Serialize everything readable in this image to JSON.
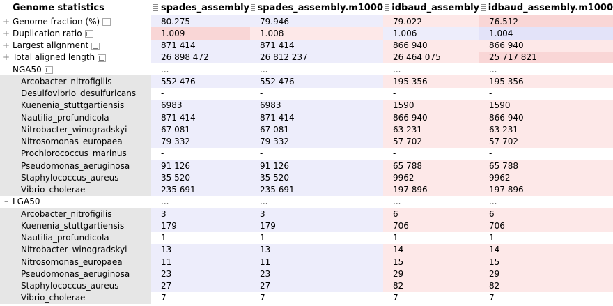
{
  "header": {
    "title": "Genome statistics",
    "columns": [
      "spades_assembly",
      "spades_assembly.m1000",
      "idbaud_assembly",
      "idbaud_assembly.m1000"
    ]
  },
  "metrics": [
    {
      "label": "Genome fraction (%)",
      "values": [
        "80.275",
        "79.946",
        "79.022",
        "76.512"
      ]
    },
    {
      "label": "Duplication ratio",
      "values": [
        "1.009",
        "1.008",
        "1.006",
        "1.004"
      ]
    },
    {
      "label": "Largest alignment",
      "values": [
        "871 414",
        "871 414",
        "866 940",
        "866 940"
      ]
    },
    {
      "label": "Total aligned length",
      "values": [
        "26 898 472",
        "26 812 237",
        "26 464 075",
        "25 717 821"
      ]
    }
  ],
  "nga50": {
    "label": "NGA50",
    "summary": [
      "...",
      "...",
      "...",
      "..."
    ],
    "rows": [
      {
        "label": "Arcobacter_nitrofigilis",
        "values": [
          "552 476",
          "552 476",
          "195 356",
          "195 356"
        ]
      },
      {
        "label": "Desulfovibrio_desulfuricans",
        "values": [
          "-",
          "-",
          "-",
          "-"
        ]
      },
      {
        "label": "Kuenenia_stuttgartiensis",
        "values": [
          "6983",
          "6983",
          "1590",
          "1590"
        ]
      },
      {
        "label": "Nautilia_profundicola",
        "values": [
          "871 414",
          "871 414",
          "866 940",
          "866 940"
        ]
      },
      {
        "label": "Nitrobacter_winogradskyi",
        "values": [
          "67 081",
          "67 081",
          "63 231",
          "63 231"
        ]
      },
      {
        "label": "Nitrosomonas_europaea",
        "values": [
          "79 332",
          "79 332",
          "57 702",
          "57 702"
        ]
      },
      {
        "label": "Prochlorococcus_marinus",
        "values": [
          "-",
          "-",
          "-",
          "-"
        ]
      },
      {
        "label": "Pseudomonas_aeruginosa",
        "values": [
          "91 126",
          "91 126",
          "65 788",
          "65 788"
        ]
      },
      {
        "label": "Staphylococcus_aureus",
        "values": [
          "35 520",
          "35 520",
          "9962",
          "9962"
        ]
      },
      {
        "label": "Vibrio_cholerae",
        "values": [
          "235 691",
          "235 691",
          "197 896",
          "197 896"
        ]
      }
    ]
  },
  "lga50": {
    "label": "LGA50",
    "summary": [
      "...",
      "...",
      "...",
      "..."
    ],
    "rows": [
      {
        "label": "Arcobacter_nitrofigilis",
        "values": [
          "3",
          "3",
          "6",
          "6"
        ]
      },
      {
        "label": "Kuenenia_stuttgartiensis",
        "values": [
          "179",
          "179",
          "706",
          "706"
        ]
      },
      {
        "label": "Nautilia_profundicola",
        "values": [
          "1",
          "1",
          "1",
          "1"
        ]
      },
      {
        "label": "Nitrobacter_winogradskyi",
        "values": [
          "13",
          "13",
          "14",
          "14"
        ]
      },
      {
        "label": "Nitrosomonas_europaea",
        "values": [
          "11",
          "11",
          "15",
          "15"
        ]
      },
      {
        "label": "Pseudomonas_aeruginosa",
        "values": [
          "23",
          "23",
          "29",
          "29"
        ]
      },
      {
        "label": "Staphylococcus_aureus",
        "values": [
          "27",
          "27",
          "82",
          "82"
        ]
      },
      {
        "label": "Vibrio_cholerae",
        "values": [
          "7",
          "7",
          "7",
          "7"
        ]
      }
    ]
  },
  "icons": {
    "expand": "plus-icon",
    "collapse": "minus-icon",
    "plot": "plot-icon",
    "drag": "drag-grip-icon"
  },
  "colors": {
    "low_blue": "#ededfb",
    "high_red": "#fde8e8",
    "group_label_bg": "#e6e6e6"
  }
}
